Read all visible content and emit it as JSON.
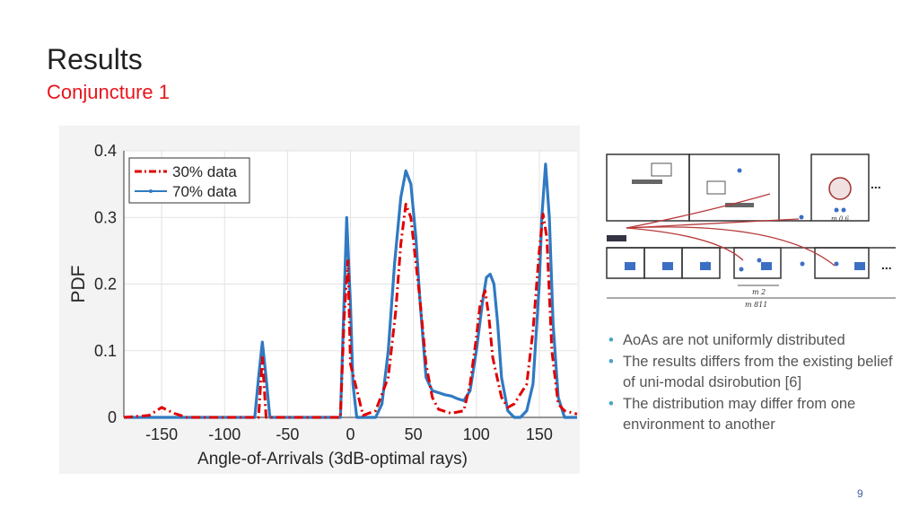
{
  "slide": {
    "title": "Results",
    "subtitle": "Conjuncture 1",
    "page_number": "9"
  },
  "bullets": [
    "AoAs are not uniformly distributed",
    "The results differs from the existing belief of uni-modal dsirobution [6]",
    "The distribution may differ from one environment to another"
  ],
  "diagram": {
    "dim_small": "m 2",
    "dim_large": "m 811",
    "dim_room": "m 0 6",
    "ellipsis_1": "...",
    "ellipsis_2": "..."
  },
  "colors": {
    "title": "#222222",
    "subtitle": "#e8141c",
    "series_30": "#e00000",
    "series_70": "#2f7ac2",
    "bullet": "#42a5c8",
    "diagram_arrow": "#b83a3a"
  },
  "chart_data": {
    "type": "line",
    "xlabel": "Angle-of-Arrivals (3dB-optimal rays)",
    "ylabel": "PDF",
    "xlim": [
      -180,
      180
    ],
    "ylim": [
      0,
      0.4
    ],
    "xticks": [
      -150,
      -100,
      -50,
      0,
      50,
      100,
      150
    ],
    "yticks": [
      0,
      0.1,
      0.2,
      0.3,
      0.4
    ],
    "legend_position": "top-left",
    "grid": true,
    "series": [
      {
        "name": "30% data",
        "style": "dash-dot",
        "x": [
          -180,
          -160,
          -150,
          -140,
          -130,
          -100,
          -73,
          -70,
          -67,
          -50,
          -8,
          -5,
          -2,
          0,
          10,
          20,
          30,
          36,
          40,
          44,
          48,
          55,
          60,
          65,
          70,
          80,
          90,
          95,
          100,
          103,
          107,
          110,
          113,
          120,
          125,
          130,
          140,
          145,
          150,
          153,
          156,
          160,
          165,
          170,
          180
        ],
        "values": [
          0,
          0.003,
          0.015,
          0.006,
          0,
          0,
          0,
          0.09,
          0,
          0,
          0,
          0.15,
          0.235,
          0.08,
          0.003,
          0.01,
          0.06,
          0.16,
          0.26,
          0.32,
          0.3,
          0.18,
          0.08,
          0.03,
          0.012,
          0.006,
          0.01,
          0.05,
          0.12,
          0.17,
          0.19,
          0.15,
          0.09,
          0.03,
          0.015,
          0.02,
          0.05,
          0.13,
          0.25,
          0.305,
          0.27,
          0.1,
          0.02,
          0.01,
          0.005
        ]
      },
      {
        "name": "70% data",
        "style": "solid-marker",
        "x": [
          -180,
          -120,
          -76,
          -73,
          -70,
          -67,
          -64,
          -50,
          -8,
          -6,
          -3,
          0,
          2,
          5,
          10,
          20,
          25,
          30,
          35,
          40,
          44,
          48,
          52,
          55,
          60,
          65,
          70,
          75,
          80,
          85,
          90,
          95,
          100,
          105,
          108,
          111,
          114,
          117,
          120,
          125,
          130,
          135,
          140,
          145,
          150,
          152,
          155,
          158,
          161,
          165,
          170,
          180
        ],
        "values": [
          0,
          0,
          0,
          0.06,
          0.113,
          0.06,
          0,
          0,
          0,
          0.12,
          0.3,
          0.17,
          0.05,
          0,
          0,
          0,
          0.02,
          0.1,
          0.23,
          0.33,
          0.37,
          0.35,
          0.27,
          0.18,
          0.06,
          0.04,
          0.037,
          0.034,
          0.032,
          0.028,
          0.025,
          0.04,
          0.1,
          0.175,
          0.21,
          0.215,
          0.2,
          0.14,
          0.06,
          0.01,
          0,
          0,
          0.01,
          0.05,
          0.2,
          0.3,
          0.38,
          0.3,
          0.14,
          0.03,
          0,
          0
        ]
      }
    ]
  }
}
